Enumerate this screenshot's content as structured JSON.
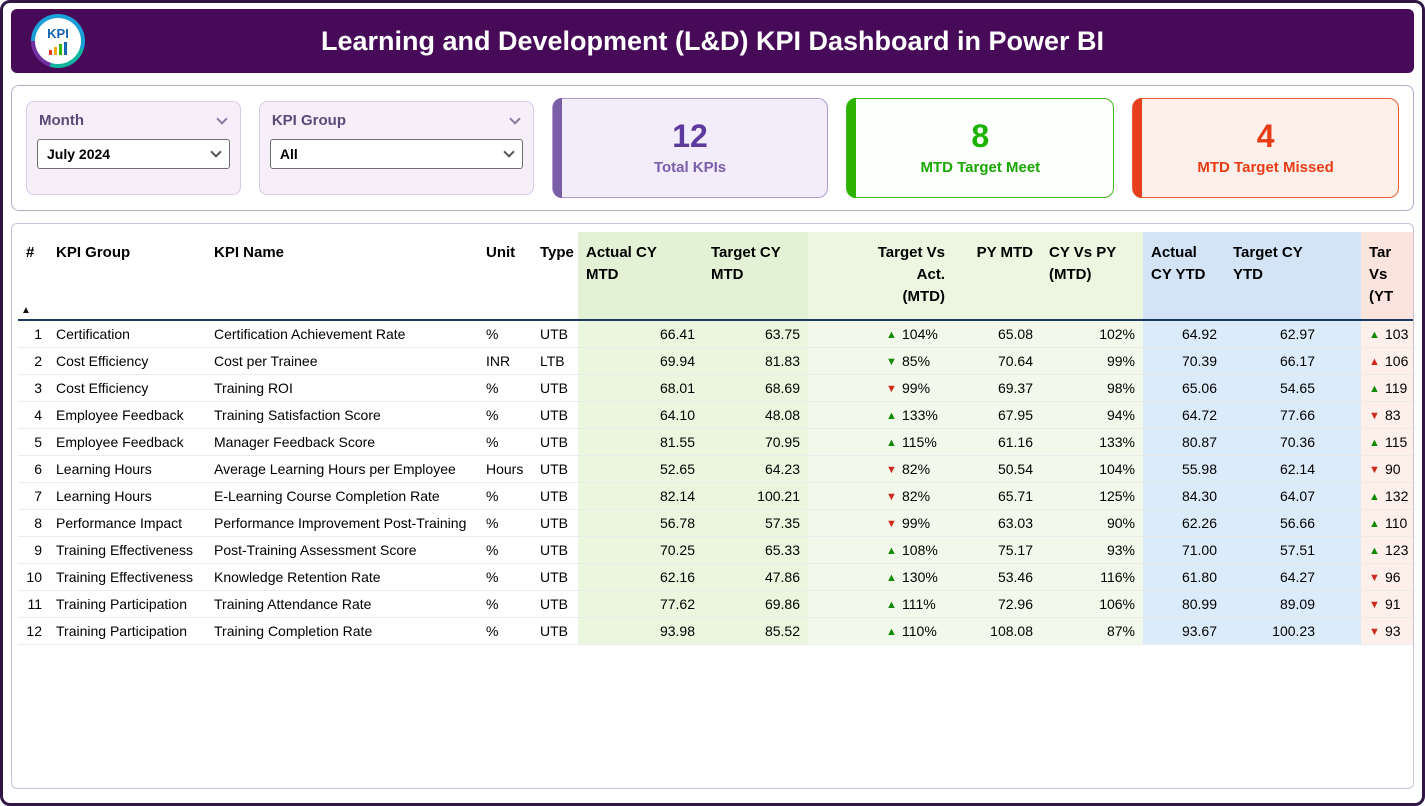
{
  "header": {
    "title": "Learning and Development (L&D) KPI Dashboard in Power BI",
    "logo_text": "KPI"
  },
  "filters": {
    "month": {
      "label": "Month",
      "value": "July 2024"
    },
    "kpi_group": {
      "label": "KPI Group",
      "value": "All"
    }
  },
  "cards": [
    {
      "value": "12",
      "label": "Total KPIs"
    },
    {
      "value": "8",
      "label": "MTD Target Meet"
    },
    {
      "value": "4",
      "label": "MTD Target Missed"
    }
  ],
  "colors": {
    "header_bg": "#470a59",
    "purple_accent": "#7a5ea8",
    "green_accent": "#2cb400",
    "red_accent": "#e8401c",
    "indicator_up_green": "#0e8a00",
    "indicator_down_red": "#cf281c",
    "mtd_section_bg": "#eaf6de",
    "ytd_section_bg": "#dcebfa"
  },
  "table": {
    "up_icon": "▲",
    "down_icon": "▼",
    "sort_icon": "▲",
    "columns": [
      {
        "id": "num",
        "label": "#",
        "align": "right",
        "halign": "left",
        "section": "plain",
        "sorted": true
      },
      {
        "id": "group",
        "label": "KPI Group",
        "align": "left",
        "section": "plain"
      },
      {
        "id": "name",
        "label": "KPI Name",
        "align": "left",
        "section": "plain"
      },
      {
        "id": "unit",
        "label": "Unit",
        "align": "left",
        "section": "plain"
      },
      {
        "id": "type",
        "label": "Type",
        "align": "left",
        "section": "plain"
      },
      {
        "id": "actual_cy_mtd",
        "label": "Actual CY\nMTD",
        "align": "right",
        "halign": "left",
        "section": "mtdA"
      },
      {
        "id": "target_cy_mtd",
        "label": "Target CY\nMTD",
        "align": "right",
        "halign": "left",
        "section": "mtdA"
      },
      {
        "id": "target_vs_act_mtd",
        "label": "Target Vs\nAct.\n(MTD)",
        "align": "left",
        "halign": "right",
        "section": "mtdB",
        "indicator": true
      },
      {
        "id": "py_mtd",
        "label": "PY MTD",
        "align": "right",
        "halign": "right",
        "section": "mtdB"
      },
      {
        "id": "cy_vs_py_mtd",
        "label": "CY Vs PY\n(MTD)",
        "align": "right",
        "halign": "left",
        "section": "mtdB"
      },
      {
        "id": "actual_cy_ytd",
        "label": "Actual\nCY YTD",
        "align": "right",
        "halign": "left",
        "section": "ytd"
      },
      {
        "id": "target_cy_ytd",
        "label": "Target CY\nYTD",
        "align": "right",
        "halign": "left",
        "section": "ytd"
      },
      {
        "id": "target_vs_act_ytd",
        "label": "Tar\nVs\n(YT",
        "align": "left",
        "halign": "left",
        "section": "last",
        "indicator": true
      }
    ],
    "rows": [
      {
        "num": "1",
        "group": "Certification",
        "name": "Certification Achievement Rate",
        "unit": "%",
        "type": "UTB",
        "actual_cy_mtd": "66.41",
        "target_cy_mtd": "63.75",
        "target_vs_act_mtd": {
          "dir": "up",
          "color": "green",
          "value": "104%"
        },
        "py_mtd": "65.08",
        "cy_vs_py_mtd": "102%",
        "actual_cy_ytd": "64.92",
        "target_cy_ytd": "62.97",
        "target_vs_act_ytd": {
          "dir": "up",
          "color": "green",
          "value": "103"
        }
      },
      {
        "num": "2",
        "group": "Cost Efficiency",
        "name": "Cost per Trainee",
        "unit": "INR",
        "type": "LTB",
        "actual_cy_mtd": "69.94",
        "target_cy_mtd": "81.83",
        "target_vs_act_mtd": {
          "dir": "down",
          "color": "green",
          "value": "85%"
        },
        "py_mtd": "70.64",
        "cy_vs_py_mtd": "99%",
        "actual_cy_ytd": "70.39",
        "target_cy_ytd": "66.17",
        "target_vs_act_ytd": {
          "dir": "up",
          "color": "red",
          "value": "106"
        }
      },
      {
        "num": "3",
        "group": "Cost Efficiency",
        "name": "Training ROI",
        "unit": "%",
        "type": "UTB",
        "actual_cy_mtd": "68.01",
        "target_cy_mtd": "68.69",
        "target_vs_act_mtd": {
          "dir": "down",
          "color": "red",
          "value": "99%"
        },
        "py_mtd": "69.37",
        "cy_vs_py_mtd": "98%",
        "actual_cy_ytd": "65.06",
        "target_cy_ytd": "54.65",
        "target_vs_act_ytd": {
          "dir": "up",
          "color": "green",
          "value": "119"
        }
      },
      {
        "num": "4",
        "group": "Employee Feedback",
        "name": "Training Satisfaction Score",
        "unit": "%",
        "type": "UTB",
        "actual_cy_mtd": "64.10",
        "target_cy_mtd": "48.08",
        "target_vs_act_mtd": {
          "dir": "up",
          "color": "green",
          "value": "133%"
        },
        "py_mtd": "67.95",
        "cy_vs_py_mtd": "94%",
        "actual_cy_ytd": "64.72",
        "target_cy_ytd": "77.66",
        "target_vs_act_ytd": {
          "dir": "down",
          "color": "red",
          "value": "83"
        }
      },
      {
        "num": "5",
        "group": "Employee Feedback",
        "name": "Manager Feedback Score",
        "unit": "%",
        "type": "UTB",
        "actual_cy_mtd": "81.55",
        "target_cy_mtd": "70.95",
        "target_vs_act_mtd": {
          "dir": "up",
          "color": "green",
          "value": "115%"
        },
        "py_mtd": "61.16",
        "cy_vs_py_mtd": "133%",
        "actual_cy_ytd": "80.87",
        "target_cy_ytd": "70.36",
        "target_vs_act_ytd": {
          "dir": "up",
          "color": "green",
          "value": "115"
        }
      },
      {
        "num": "6",
        "group": "Learning Hours",
        "name": "Average Learning Hours per Employee",
        "unit": "Hours",
        "type": "UTB",
        "actual_cy_mtd": "52.65",
        "target_cy_mtd": "64.23",
        "target_vs_act_mtd": {
          "dir": "down",
          "color": "red",
          "value": "82%"
        },
        "py_mtd": "50.54",
        "cy_vs_py_mtd": "104%",
        "actual_cy_ytd": "55.98",
        "target_cy_ytd": "62.14",
        "target_vs_act_ytd": {
          "dir": "down",
          "color": "red",
          "value": "90"
        }
      },
      {
        "num": "7",
        "group": "Learning Hours",
        "name": "E-Learning Course Completion Rate",
        "unit": "%",
        "type": "UTB",
        "actual_cy_mtd": "82.14",
        "target_cy_mtd": "100.21",
        "target_vs_act_mtd": {
          "dir": "down",
          "color": "red",
          "value": "82%"
        },
        "py_mtd": "65.71",
        "cy_vs_py_mtd": "125%",
        "actual_cy_ytd": "84.30",
        "target_cy_ytd": "64.07",
        "target_vs_act_ytd": {
          "dir": "up",
          "color": "green",
          "value": "132"
        }
      },
      {
        "num": "8",
        "group": "Performance Impact",
        "name": "Performance Improvement Post-Training",
        "unit": "%",
        "type": "UTB",
        "actual_cy_mtd": "56.78",
        "target_cy_mtd": "57.35",
        "target_vs_act_mtd": {
          "dir": "down",
          "color": "red",
          "value": "99%"
        },
        "py_mtd": "63.03",
        "cy_vs_py_mtd": "90%",
        "actual_cy_ytd": "62.26",
        "target_cy_ytd": "56.66",
        "target_vs_act_ytd": {
          "dir": "up",
          "color": "green",
          "value": "110"
        }
      },
      {
        "num": "9",
        "group": "Training Effectiveness",
        "name": "Post-Training Assessment Score",
        "unit": "%",
        "type": "UTB",
        "actual_cy_mtd": "70.25",
        "target_cy_mtd": "65.33",
        "target_vs_act_mtd": {
          "dir": "up",
          "color": "green",
          "value": "108%"
        },
        "py_mtd": "75.17",
        "cy_vs_py_mtd": "93%",
        "actual_cy_ytd": "71.00",
        "target_cy_ytd": "57.51",
        "target_vs_act_ytd": {
          "dir": "up",
          "color": "green",
          "value": "123"
        }
      },
      {
        "num": "10",
        "group": "Training Effectiveness",
        "name": "Knowledge Retention Rate",
        "unit": "%",
        "type": "UTB",
        "actual_cy_mtd": "62.16",
        "target_cy_mtd": "47.86",
        "target_vs_act_mtd": {
          "dir": "up",
          "color": "green",
          "value": "130%"
        },
        "py_mtd": "53.46",
        "cy_vs_py_mtd": "116%",
        "actual_cy_ytd": "61.80",
        "target_cy_ytd": "64.27",
        "target_vs_act_ytd": {
          "dir": "down",
          "color": "red",
          "value": "96"
        }
      },
      {
        "num": "11",
        "group": "Training Participation",
        "name": "Training Attendance Rate",
        "unit": "%",
        "type": "UTB",
        "actual_cy_mtd": "77.62",
        "target_cy_mtd": "69.86",
        "target_vs_act_mtd": {
          "dir": "up",
          "color": "green",
          "value": "111%"
        },
        "py_mtd": "72.96",
        "cy_vs_py_mtd": "106%",
        "actual_cy_ytd": "80.99",
        "target_cy_ytd": "89.09",
        "target_vs_act_ytd": {
          "dir": "down",
          "color": "red",
          "value": "91"
        }
      },
      {
        "num": "12",
        "group": "Training Participation",
        "name": "Training Completion Rate",
        "unit": "%",
        "type": "UTB",
        "actual_cy_mtd": "93.98",
        "target_cy_mtd": "85.52",
        "target_vs_act_mtd": {
          "dir": "up",
          "color": "green",
          "value": "110%"
        },
        "py_mtd": "108.08",
        "cy_vs_py_mtd": "87%",
        "actual_cy_ytd": "93.67",
        "target_cy_ytd": "100.23",
        "target_vs_act_ytd": {
          "dir": "down",
          "color": "red",
          "value": "93"
        }
      }
    ]
  }
}
